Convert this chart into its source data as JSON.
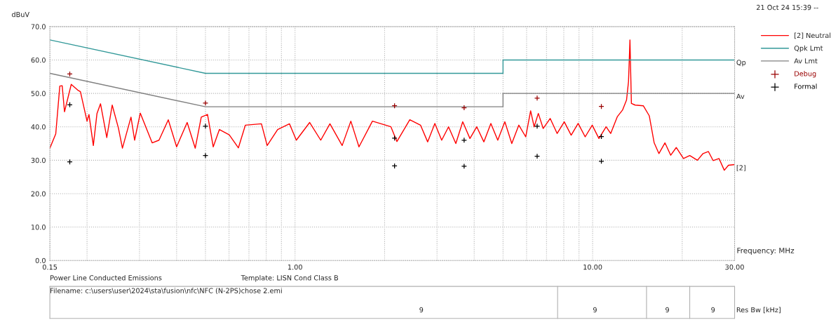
{
  "chart_data": {
    "type": "line",
    "xlabel": "Frequency: MHz",
    "ylabel": "dBuV",
    "log": "x",
    "grid": true,
    "legend": "top right",
    "xlim": [
      0.15,
      30
    ],
    "ylim": [
      0,
      70
    ],
    "xticks": [
      {
        "value": 0.15,
        "label": "0.15"
      },
      {
        "value": 0.2,
        "label": null
      },
      {
        "value": 0.3,
        "label": null
      },
      {
        "value": 0.4,
        "label": null
      },
      {
        "value": 0.5,
        "label": null
      },
      {
        "value": 0.6,
        "label": null
      },
      {
        "value": 0.7,
        "label": null
      },
      {
        "value": 0.8,
        "label": null
      },
      {
        "value": 0.9,
        "label": null
      },
      {
        "value": 1,
        "label": "1.00"
      },
      {
        "value": 2,
        "label": null
      },
      {
        "value": 3,
        "label": null
      },
      {
        "value": 4,
        "label": null
      },
      {
        "value": 5,
        "label": null
      },
      {
        "value": 6,
        "label": null
      },
      {
        "value": 7,
        "label": null
      },
      {
        "value": 8,
        "label": null
      },
      {
        "value": 9,
        "label": null
      },
      {
        "value": 10,
        "label": "10.00"
      },
      {
        "value": 20,
        "label": null
      },
      {
        "value": 30,
        "label": "30.00"
      }
    ],
    "yticks": [
      {
        "value": 0,
        "label": "0.0"
      },
      {
        "value": 10,
        "label": "10.0"
      },
      {
        "value": 20,
        "label": "20.0"
      },
      {
        "value": 30,
        "label": "30.0"
      },
      {
        "value": 40,
        "label": "40.0"
      },
      {
        "value": 50,
        "label": "50.0"
      },
      {
        "value": 60,
        "label": "60.0"
      },
      {
        "value": 70,
        "label": "70.0"
      }
    ],
    "series": [
      {
        "name": "[2] Neutral",
        "color": "#ff0000",
        "line_style": "solid",
        "marker": "none",
        "x": [
          0.15,
          0.157,
          0.162,
          0.165,
          0.168,
          0.177,
          0.186,
          0.19,
          0.2,
          0.203,
          0.21,
          0.216,
          0.222,
          0.233,
          0.243,
          0.255,
          0.263,
          0.281,
          0.289,
          0.302,
          0.331,
          0.349,
          0.375,
          0.4,
          0.434,
          0.462,
          0.484,
          0.508,
          0.531,
          0.557,
          0.601,
          0.645,
          0.681,
          0.771,
          0.806,
          0.874,
          0.958,
          1.01,
          1.12,
          1.22,
          1.31,
          1.44,
          1.54,
          1.64,
          1.82,
          2.1,
          2.2,
          2.43,
          2.64,
          2.79,
          2.95,
          3.11,
          3.28,
          3.47,
          3.66,
          3.87,
          4.08,
          4.31,
          4.55,
          4.8,
          5.07,
          5.35,
          5.65,
          5.96,
          6.19,
          6.36,
          6.57,
          6.82,
          7.2,
          7.6,
          8.03,
          8.47,
          8.94,
          9.44,
          9.97,
          10.5,
          11.1,
          11.5,
          12.1,
          12.6,
          13.0,
          13.2,
          13.35,
          13.5,
          13.9,
          14.8,
          15.5,
          16.1,
          16.7,
          17.5,
          18.3,
          19.1,
          20.2,
          21.2,
          22.5,
          23.5,
          24.5,
          25.4,
          26.6,
          27.7,
          28.6,
          30
        ],
        "values": [
          33.6,
          37.9,
          52.2,
          52.3,
          44.5,
          52.7,
          51,
          50.5,
          41.7,
          43.7,
          34.4,
          44,
          46.9,
          36.8,
          46.5,
          39.6,
          33.6,
          42.9,
          36,
          44.1,
          35.2,
          36,
          42.1,
          34,
          41.3,
          33.6,
          42.9,
          43.7,
          34,
          39.2,
          37.6,
          33.7,
          40.5,
          40.9,
          34.4,
          39.2,
          40.9,
          36,
          41.3,
          36,
          40.9,
          34.4,
          41.7,
          34,
          41.7,
          40,
          35.6,
          42.1,
          40.5,
          35.5,
          41,
          36,
          40,
          35,
          41.5,
          36.5,
          40,
          35.5,
          41,
          36,
          41.5,
          35,
          40.5,
          37,
          44.8,
          40,
          44,
          39.5,
          42.5,
          38,
          41.5,
          37.5,
          41,
          37,
          40.5,
          36.5,
          40,
          38,
          43,
          45,
          48,
          53.5,
          66,
          47,
          46.5,
          46.3,
          43.3,
          35.2,
          32,
          35.2,
          31.5,
          33.8,
          30.5,
          31.4,
          30,
          32,
          32.6,
          29.9,
          30.5,
          27,
          28.5,
          28.7
        ]
      },
      {
        "name": "Qpk Lmt",
        "color": "#339999",
        "line_style": "solid",
        "marker": "none",
        "x": [
          0.15,
          0.5,
          5,
          5,
          30
        ],
        "values": [
          66,
          56,
          56,
          60,
          60
        ]
      },
      {
        "name": "Av Lmt",
        "color": "#808080",
        "line_style": "solid",
        "marker": "none",
        "x": [
          0.15,
          0.5,
          5,
          5,
          30
        ],
        "values": [
          56,
          46,
          46,
          50,
          50
        ]
      },
      {
        "name": "Debug",
        "type": "scatter",
        "color": "#990000",
        "marker": "cross",
        "x": [
          0.175,
          0.5,
          2.16,
          3.7,
          6.51,
          10.7
        ],
        "values": [
          55.8,
          47.1,
          46.3,
          45.7,
          48.6,
          46.1
        ]
      },
      {
        "name": "Formal",
        "type": "scatter",
        "color": "#000000",
        "marker": "cross",
        "x": [
          0.175,
          0.5,
          2.16,
          3.7,
          6.51,
          10.7,
          0.175,
          0.5,
          2.16,
          3.7,
          6.51,
          10.7
        ],
        "values": [
          46.6,
          40.2,
          36.6,
          36.0,
          40.2,
          37.1,
          29.5,
          31.4,
          28.3,
          28.2,
          31.2,
          29.7
        ]
      }
    ],
    "annotations": [
      "21 Oct 24 15:39 --",
      "Power Line Conducted Emissions",
      "Template: LISN Cond Class B",
      "Filename: c:\\users\\user\\2024\\sta\\fusion\\nfc\\NFC (N-2PS)chose 2.emi",
      "9",
      "9",
      "9",
      "9",
      "Res Bw [kHz]",
      "Qp",
      "Av",
      "[2]"
    ]
  }
}
